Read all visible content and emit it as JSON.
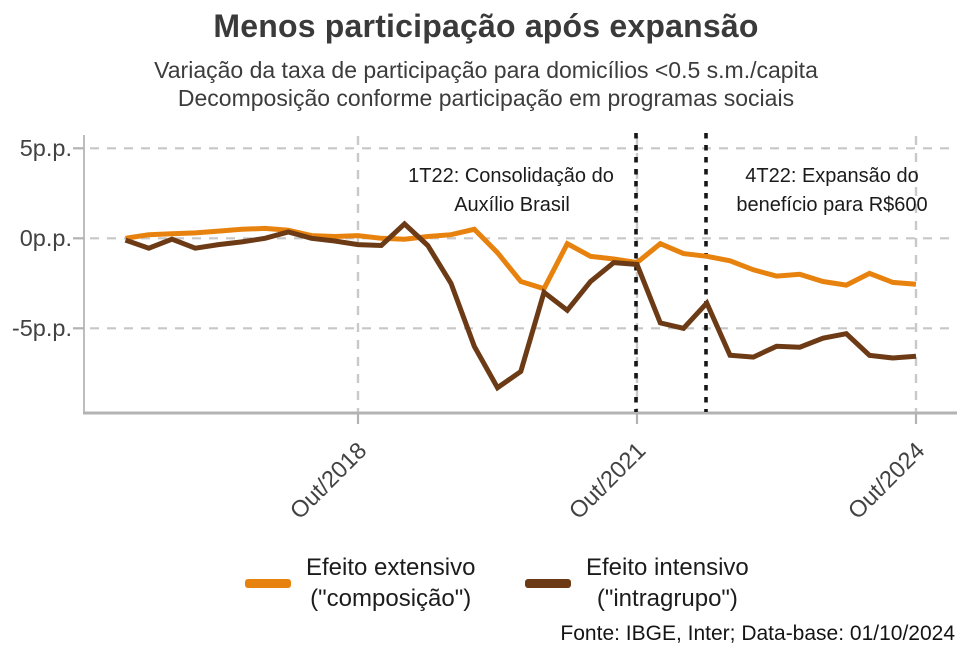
{
  "title": "Menos participação após expansão",
  "subtitle_line1": "Variação da taxa de participação para domicílios <0.5 s.m./capita",
  "subtitle_line2": "Decomposição conforme participação em programas sociais",
  "footer": "Fonte: IBGE, Inter; Data-base: 01/10/2024",
  "chart_data": {
    "type": "line",
    "x_unit": "quarters (trimestres), 2T16 to 4T24, one point per quarter",
    "x_tick_labels": [
      "Out/2018",
      "Out/2021",
      "Out/2024"
    ],
    "x_tick_indices": [
      10,
      22,
      34
    ],
    "y_ticks": [
      {
        "label": "5p.p.",
        "value": 5
      },
      {
        "label": "0p.p.",
        "value": 0
      },
      {
        "label": "-5p.p.",
        "value": -5
      }
    ],
    "ylim": [
      -9.7,
      5.3
    ],
    "grid": "dashed horizontal and vertical at ticks",
    "legend_position": "bottom",
    "series": [
      {
        "name": "Efeito extensivo (\"composição\")",
        "legend_line1": "Efeito extensivo",
        "legend_line2": "(\"composição\")",
        "color": "#E8820E",
        "values": [
          0.0,
          0.2,
          0.25,
          0.3,
          0.4,
          0.5,
          0.55,
          0.45,
          0.15,
          0.1,
          0.15,
          0.0,
          -0.05,
          0.1,
          0.2,
          0.5,
          -0.8,
          -2.4,
          -2.8,
          -0.3,
          -1.0,
          -1.15,
          -1.35,
          -0.3,
          -0.85,
          -1.0,
          -1.25,
          -1.75,
          -2.1,
          -2.0,
          -2.4,
          -2.6,
          -1.95,
          -2.45,
          -2.55
        ]
      },
      {
        "name": "Efeito intensivo (\"intragrupo\")",
        "legend_line1": "Efeito intensivo",
        "legend_line2": "(\"intragrupo\")",
        "color": "#6C3B16",
        "values": [
          -0.1,
          -0.55,
          -0.05,
          -0.55,
          -0.35,
          -0.2,
          0.0,
          0.35,
          0.0,
          -0.15,
          -0.35,
          -0.4,
          0.8,
          -0.4,
          -2.5,
          -6.0,
          -8.3,
          -7.4,
          -3.0,
          -4.0,
          -2.4,
          -1.35,
          -1.45,
          -4.7,
          -5.0,
          -3.6,
          -6.5,
          -6.6,
          -6.0,
          -6.05,
          -5.55,
          -5.3,
          -6.5,
          -6.65,
          -6.55
        ]
      }
    ],
    "annotations": [
      {
        "line1": "1T22: Consolidação do",
        "line2": "Auxílio Brasil",
        "x_index": 22
      },
      {
        "line1": "4T22: Expansão do",
        "line2": "benefício para R$600",
        "x_index": 25
      }
    ]
  }
}
